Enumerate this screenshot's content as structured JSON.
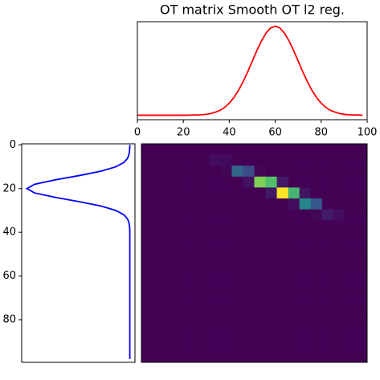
{
  "chart_data": [
    {
      "type": "line",
      "title": "OT matrix Smooth OT l2 reg.",
      "x": [
        0,
        2,
        4,
        6,
        8,
        10,
        12,
        14,
        16,
        18,
        20,
        22,
        24,
        26,
        28,
        30,
        32,
        34,
        36,
        38,
        40,
        42,
        44,
        46,
        48,
        50,
        52,
        54,
        56,
        58,
        60,
        62,
        64,
        66,
        68,
        70,
        72,
        74,
        76,
        78,
        80,
        82,
        84,
        86,
        88,
        90,
        92,
        94,
        96,
        98
      ],
      "series": [
        {
          "color": "#ff0000",
          "values": [
            0,
            0,
            0,
            0,
            0,
            0,
            0,
            0,
            0,
            0,
            0,
            0,
            0.0001,
            0.0001,
            0.0002,
            0.0004,
            0.0008,
            0.0014,
            0.0022,
            0.0035,
            0.0054,
            0.0079,
            0.0111,
            0.015,
            0.0194,
            0.0242,
            0.029,
            0.0333,
            0.0368,
            0.0391,
            0.0399,
            0.0391,
            0.0368,
            0.0333,
            0.029,
            0.0242,
            0.0194,
            0.015,
            0.0111,
            0.0079,
            0.0054,
            0.0035,
            0.0022,
            0.0014,
            0.0008,
            0.0004,
            0.0002,
            0.0001,
            0.0001,
            0
          ]
        }
      ],
      "xlim": [
        0,
        100
      ],
      "xticks": [
        0,
        20,
        40,
        60,
        80,
        100
      ],
      "ylim": [
        -0.002,
        0.0419
      ]
    },
    {
      "type": "line",
      "orientation": "horizontal",
      "y": [
        0,
        2,
        4,
        6,
        8,
        10,
        12,
        14,
        16,
        18,
        20,
        22,
        24,
        26,
        28,
        30,
        32,
        34,
        36,
        38,
        40,
        42,
        44,
        46,
        48,
        50,
        52,
        54,
        56,
        58,
        60,
        62,
        64,
        66,
        68,
        70,
        72,
        74,
        76,
        78,
        80,
        82,
        84,
        86,
        88,
        90,
        92,
        94,
        96,
        98
      ],
      "series": [
        {
          "color": "#0000ff",
          "values": [
            0,
            0.0001,
            0.0005,
            0.0016,
            0.0045,
            0.0108,
            0.0222,
            0.0389,
            0.0579,
            0.0737,
            0.0798,
            0.0737,
            0.0579,
            0.0389,
            0.0222,
            0.0108,
            0.0045,
            0.0016,
            0.0005,
            0.0001,
            0,
            0,
            0,
            0,
            0,
            0,
            0,
            0,
            0,
            0,
            0,
            0,
            0,
            0,
            0,
            0,
            0,
            0,
            0,
            0,
            0,
            0,
            0,
            0,
            0,
            0,
            0,
            0,
            0,
            0
          ]
        }
      ],
      "xlim": [
        0.0838,
        -0.004
      ],
      "ylim": [
        -0.5,
        99.5
      ],
      "yinverted": true,
      "yticks": [
        0,
        20,
        40,
        60,
        80
      ]
    },
    {
      "type": "heatmap",
      "colormap": "viridis",
      "xlim": [
        -0.5,
        99.5
      ],
      "ylim": [
        -0.5,
        99.5
      ],
      "z": [
        [
          0,
          0,
          0,
          0,
          0,
          0,
          0,
          0,
          0,
          0,
          0,
          0,
          0,
          0,
          0,
          0,
          0,
          0,
          0,
          0
        ],
        [
          0,
          0,
          0,
          0,
          0,
          0.002,
          0.008,
          0.006,
          0.001,
          0,
          0,
          0,
          0,
          0,
          0,
          0,
          0,
          0,
          0,
          0
        ],
        [
          0,
          0,
          0,
          0,
          0,
          0,
          0,
          0.004,
          0.065,
          0.045,
          0.003,
          0,
          0,
          0,
          0,
          0,
          0,
          0,
          0,
          0
        ],
        [
          0,
          0,
          0,
          0,
          0,
          0,
          0,
          0,
          0,
          0.01,
          0.16,
          0.14,
          0.015,
          0,
          0,
          0,
          0,
          0,
          0,
          0
        ],
        [
          0,
          0,
          0,
          0,
          0,
          0,
          0,
          0,
          0,
          0,
          0,
          0.015,
          0.2,
          0.13,
          0.011,
          0,
          0,
          0,
          0,
          0
        ],
        [
          0,
          0,
          0,
          0,
          0,
          0,
          0,
          0,
          0,
          0,
          0,
          0,
          0,
          0.008,
          0.09,
          0.055,
          0.002,
          0,
          0,
          0
        ],
        [
          0,
          0,
          0,
          0,
          0,
          0,
          0,
          0,
          0,
          0,
          0,
          0,
          0,
          0,
          0,
          0.004,
          0.016,
          0.007,
          0,
          0
        ],
        [
          0,
          0,
          0,
          0,
          0,
          0,
          0,
          0,
          0,
          0,
          0,
          0,
          0,
          0,
          0,
          0,
          0,
          0.001,
          0,
          0
        ],
        [
          0,
          0,
          0,
          0,
          0,
          0,
          0,
          0,
          0,
          0,
          0,
          0,
          0,
          0,
          0,
          0,
          0,
          0,
          0,
          0
        ],
        [
          0,
          0,
          0,
          0,
          0,
          0,
          0,
          0,
          0,
          0,
          0,
          0,
          0,
          0,
          0,
          0,
          0,
          0,
          0,
          0
        ],
        [
          0,
          0,
          0,
          0,
          0,
          0,
          0,
          0,
          0,
          0,
          0,
          0,
          0,
          0,
          0,
          0,
          0,
          0,
          0,
          0
        ],
        [
          0,
          0,
          0,
          0,
          0,
          0,
          0,
          0,
          0,
          0,
          0,
          0,
          0,
          0,
          0,
          0,
          0,
          0,
          0,
          0
        ],
        [
          0,
          0,
          0,
          0,
          0,
          0,
          0,
          0,
          0,
          0,
          0,
          0,
          0,
          0,
          0,
          0,
          0,
          0,
          0,
          0
        ],
        [
          0,
          0,
          0,
          0,
          0,
          0,
          0,
          0,
          0,
          0,
          0,
          0,
          0,
          0,
          0,
          0,
          0,
          0,
          0,
          0
        ],
        [
          0,
          0,
          0,
          0,
          0,
          0,
          0,
          0,
          0,
          0,
          0,
          0,
          0,
          0,
          0,
          0,
          0,
          0,
          0,
          0
        ],
        [
          0,
          0,
          0,
          0,
          0,
          0,
          0,
          0,
          0,
          0,
          0,
          0,
          0,
          0,
          0,
          0,
          0,
          0,
          0,
          0
        ],
        [
          0,
          0,
          0,
          0,
          0,
          0,
          0,
          0,
          0,
          0,
          0,
          0,
          0,
          0,
          0,
          0,
          0,
          0,
          0,
          0
        ],
        [
          0,
          0,
          0,
          0,
          0,
          0,
          0,
          0,
          0,
          0,
          0,
          0,
          0,
          0,
          0,
          0,
          0,
          0,
          0,
          0
        ],
        [
          0,
          0,
          0,
          0,
          0,
          0,
          0,
          0,
          0,
          0,
          0,
          0,
          0,
          0,
          0,
          0,
          0,
          0,
          0,
          0
        ],
        [
          0,
          0,
          0,
          0,
          0,
          0,
          0,
          0,
          0,
          0,
          0,
          0,
          0,
          0,
          0,
          0,
          0,
          0,
          0,
          0
        ]
      ]
    }
  ]
}
